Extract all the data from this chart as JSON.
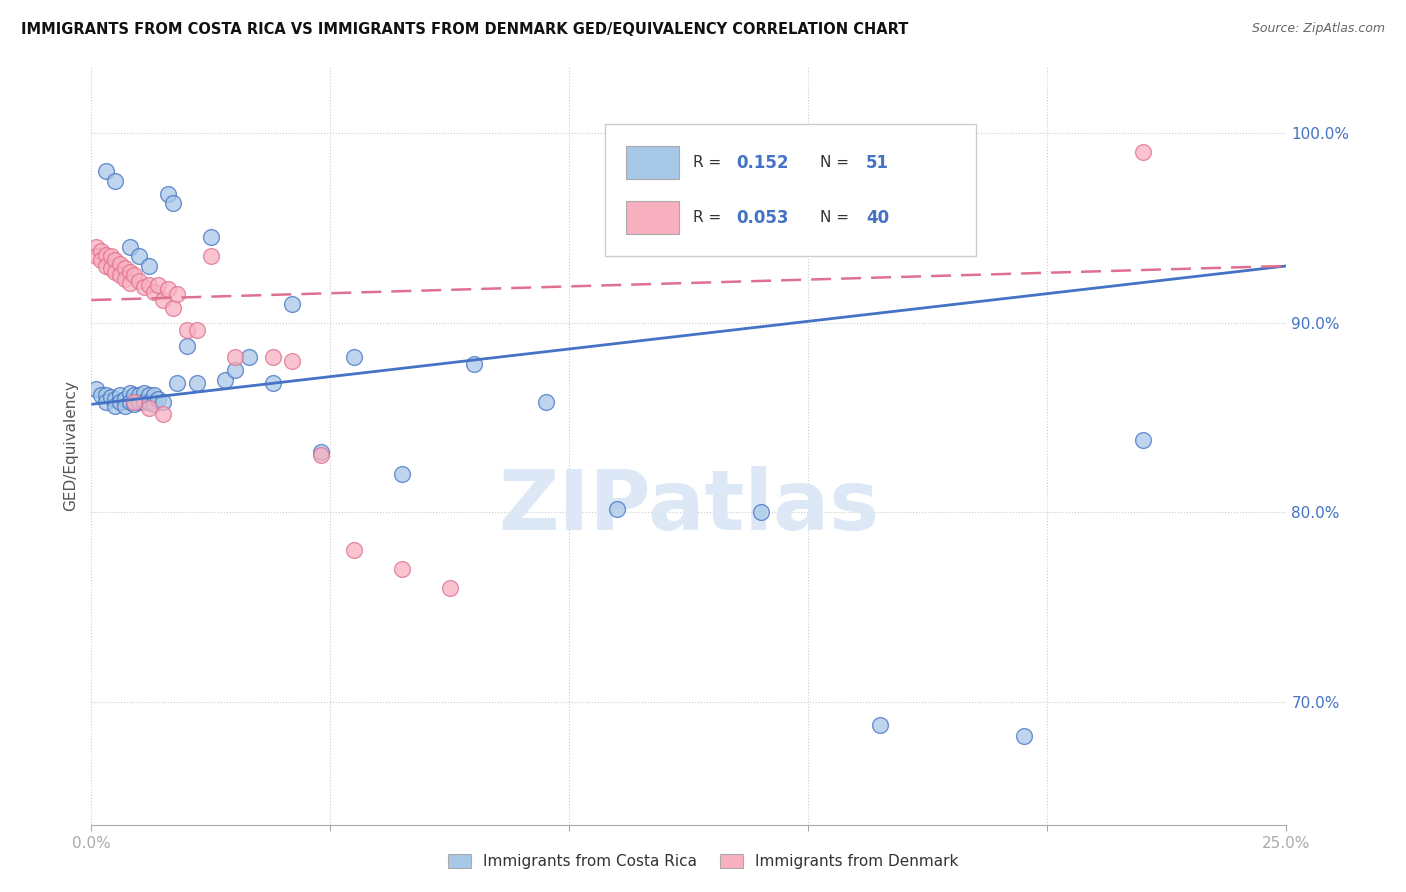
{
  "title": "IMMIGRANTS FROM COSTA RICA VS IMMIGRANTS FROM DENMARK GED/EQUIVALENCY CORRELATION CHART",
  "source": "Source: ZipAtlas.com",
  "ylabel": "GED/Equivalency",
  "xlim": [
    0.0,
    0.25
  ],
  "ylim": [
    0.635,
    1.035
  ],
  "ytick_values": [
    0.7,
    0.8,
    0.9,
    1.0
  ],
  "ytick_labels": [
    "70.0%",
    "80.0%",
    "90.0%",
    "100.0%"
  ],
  "blue_color": "#aac4e0",
  "pink_color": "#f4aabb",
  "blue_line_color": "#4472c4",
  "pink_line_color": "#e07090",
  "blue_scatter_color": "#a8c8e8",
  "pink_scatter_color": "#f8b0c0",
  "legend_R1": "0.152",
  "legend_N1": "51",
  "legend_R2": "0.053",
  "legend_N2": "40",
  "watermark": "ZIPatlas",
  "watermark_color": "#dce8f5",
  "cr_x": [
    0.001,
    0.002,
    0.003,
    0.003,
    0.004,
    0.005,
    0.005,
    0.006,
    0.006,
    0.007,
    0.007,
    0.008,
    0.008,
    0.009,
    0.009,
    0.01,
    0.01,
    0.011,
    0.011,
    0.012,
    0.012,
    0.013,
    0.013,
    0.014,
    0.015,
    0.016,
    0.017,
    0.018,
    0.02,
    0.022,
    0.025,
    0.028,
    0.03,
    0.033,
    0.038,
    0.042,
    0.048,
    0.055,
    0.065,
    0.08,
    0.095,
    0.11,
    0.14,
    0.165,
    0.195,
    0.22,
    0.003,
    0.005,
    0.008,
    0.01,
    0.012
  ],
  "cr_y": [
    0.865,
    0.862,
    0.862,
    0.858,
    0.861,
    0.86,
    0.856,
    0.862,
    0.858,
    0.86,
    0.856,
    0.863,
    0.858,
    0.862,
    0.857,
    0.862,
    0.858,
    0.863,
    0.858,
    0.862,
    0.858,
    0.862,
    0.857,
    0.86,
    0.858,
    0.968,
    0.963,
    0.868,
    0.888,
    0.868,
    0.945,
    0.87,
    0.875,
    0.882,
    0.868,
    0.91,
    0.832,
    0.882,
    0.82,
    0.878,
    0.858,
    0.802,
    0.8,
    0.688,
    0.682,
    0.838,
    0.98,
    0.975,
    0.94,
    0.935,
    0.93
  ],
  "dk_x": [
    0.001,
    0.001,
    0.002,
    0.002,
    0.003,
    0.003,
    0.004,
    0.004,
    0.005,
    0.005,
    0.006,
    0.006,
    0.007,
    0.007,
    0.008,
    0.008,
    0.009,
    0.01,
    0.011,
    0.012,
    0.013,
    0.014,
    0.015,
    0.016,
    0.017,
    0.018,
    0.02,
    0.025,
    0.03,
    0.038,
    0.042,
    0.048,
    0.055,
    0.065,
    0.075,
    0.22,
    0.009,
    0.012,
    0.015,
    0.022
  ],
  "dk_y": [
    0.94,
    0.935,
    0.938,
    0.933,
    0.936,
    0.93,
    0.935,
    0.929,
    0.933,
    0.927,
    0.931,
    0.925,
    0.929,
    0.923,
    0.927,
    0.921,
    0.925,
    0.922,
    0.919,
    0.92,
    0.916,
    0.92,
    0.912,
    0.918,
    0.908,
    0.915,
    0.896,
    0.935,
    0.882,
    0.882,
    0.88,
    0.83,
    0.78,
    0.77,
    0.76,
    0.99,
    0.858,
    0.855,
    0.852,
    0.896
  ],
  "cr_line_x0": 0.0,
  "cr_line_x1": 0.25,
  "cr_line_y0": 0.857,
  "cr_line_y1": 0.93,
  "dk_line_x0": 0.0,
  "dk_line_x1": 0.25,
  "dk_line_y0": 0.912,
  "dk_line_y1": 0.93
}
